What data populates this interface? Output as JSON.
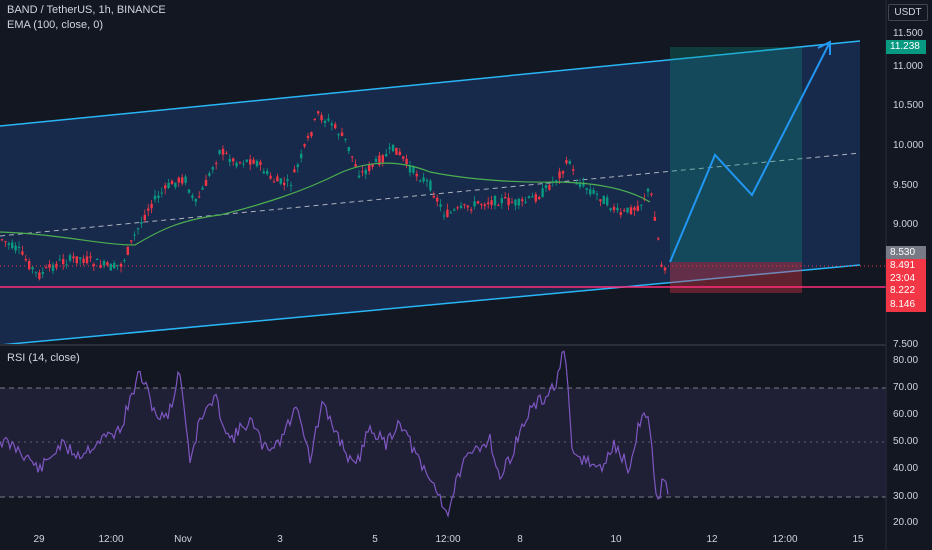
{
  "header": {
    "symbol_line": "BAND / TetherUS, 1h, BINANCE",
    "indicator_line": "EMA (100, close, 0)",
    "rsi_label": "RSI (14, close)"
  },
  "price_axis": {
    "unit": "USDT",
    "labels": [
      "11.500",
      "11.000",
      "10.500",
      "10.000",
      "9.500",
      "9.000",
      "7.500"
    ]
  },
  "price_tags": [
    {
      "text": "11.238",
      "color": "#089981"
    },
    {
      "text": "8.530",
      "color": "#787b86"
    },
    {
      "text": "8.491",
      "color": "#f23645"
    },
    {
      "text": "23:04",
      "color": "#f23645"
    },
    {
      "text": "8.222",
      "color": "#f23645"
    },
    {
      "text": "8.146",
      "color": "#f23645"
    }
  ],
  "rsi_axis": {
    "labels": [
      "80.00",
      "70.00",
      "60.00",
      "50.00",
      "40.00",
      "30.00",
      "20.00"
    ]
  },
  "time_axis": {
    "labels": [
      "29",
      "12:00",
      "Nov",
      "3",
      "5",
      "12:00",
      "8",
      "10",
      "12",
      "12:00",
      "15"
    ]
  },
  "colors": {
    "background": "#131722",
    "channel": "#29b6f6",
    "ema": "#4caf50",
    "rsi": "#7e57c2",
    "support": "#ff2d7a",
    "up": "#089981",
    "down": "#f23645",
    "projection": "#2196f3"
  }
}
